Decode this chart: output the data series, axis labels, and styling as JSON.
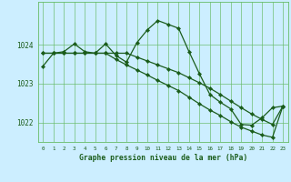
{
  "title": "Graphe pression niveau de la mer (hPa)",
  "background_color": "#cceeff",
  "grid_color": "#66bb66",
  "line_color": "#1a5c1a",
  "marker_color": "#1a5c1a",
  "xlim": [
    -0.5,
    23.5
  ],
  "ylim": [
    1021.5,
    1025.1
  ],
  "yticks": [
    1022,
    1023,
    1024
  ],
  "xticks": [
    0,
    1,
    2,
    3,
    4,
    5,
    6,
    7,
    8,
    9,
    10,
    11,
    12,
    13,
    14,
    15,
    16,
    17,
    18,
    19,
    20,
    21,
    22,
    23
  ],
  "series1": [
    1023.45,
    1023.78,
    1023.82,
    1024.02,
    1023.82,
    1023.78,
    1024.02,
    1023.72,
    1023.55,
    1024.05,
    1024.38,
    1024.62,
    1024.52,
    1024.42,
    1023.82,
    1023.25,
    1022.72,
    1022.52,
    1022.35,
    1021.95,
    1021.93,
    1022.12,
    1022.38,
    1022.42
  ],
  "series2": [
    1023.78,
    1023.78,
    1023.78,
    1023.78,
    1023.78,
    1023.78,
    1023.78,
    1023.78,
    1023.78,
    1023.68,
    1023.58,
    1023.48,
    1023.38,
    1023.28,
    1023.15,
    1023.02,
    1022.88,
    1022.72,
    1022.55,
    1022.38,
    1022.22,
    1022.08,
    1021.95,
    1022.42
  ],
  "series3": [
    1023.78,
    1023.78,
    1023.78,
    1023.78,
    1023.78,
    1023.78,
    1023.78,
    1023.62,
    1023.48,
    1023.35,
    1023.22,
    1023.08,
    1022.95,
    1022.82,
    1022.65,
    1022.48,
    1022.32,
    1022.18,
    1022.02,
    1021.88,
    1021.78,
    1021.68,
    1021.62,
    1022.42
  ]
}
